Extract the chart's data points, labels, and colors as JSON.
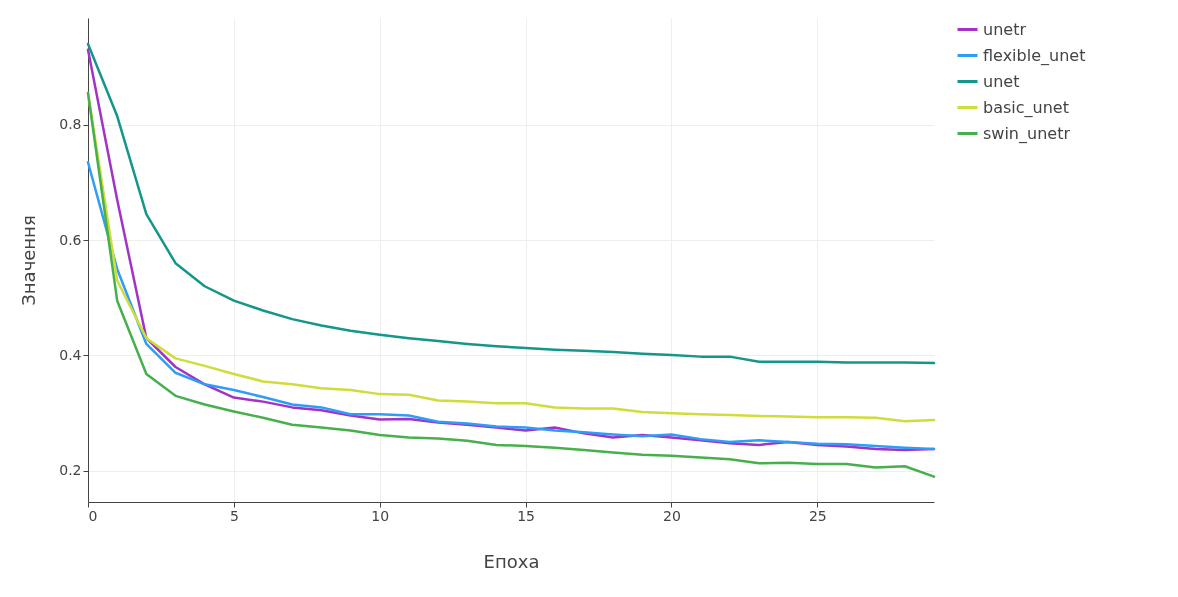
{
  "chart_data": {
    "type": "line",
    "xlabel": "Епоха",
    "ylabel": "Значення",
    "x": [
      0,
      1,
      2,
      3,
      4,
      5,
      6,
      7,
      8,
      9,
      10,
      11,
      12,
      13,
      14,
      15,
      16,
      17,
      18,
      19,
      20,
      21,
      22,
      23,
      24,
      25,
      26,
      27,
      28,
      29
    ],
    "series": [
      {
        "name": "unetr",
        "color": "#a233c6",
        "values": [
          0.93,
          0.67,
          0.43,
          0.38,
          0.35,
          0.327,
          0.32,
          0.31,
          0.305,
          0.296,
          0.289,
          0.29,
          0.284,
          0.28,
          0.275,
          0.27,
          0.275,
          0.265,
          0.258,
          0.262,
          0.258,
          0.253,
          0.248,
          0.245,
          0.25,
          0.245,
          0.242,
          0.238,
          0.236,
          0.238
        ]
      },
      {
        "name": "flexible_unet",
        "color": "#2e9df7",
        "values": [
          0.735,
          0.55,
          0.42,
          0.37,
          0.35,
          0.34,
          0.328,
          0.315,
          0.31,
          0.298,
          0.298,
          0.296,
          0.285,
          0.282,
          0.277,
          0.275,
          0.27,
          0.267,
          0.263,
          0.26,
          0.263,
          0.255,
          0.25,
          0.253,
          0.25,
          0.247,
          0.246,
          0.243,
          0.24,
          0.238
        ]
      },
      {
        "name": "unet",
        "color": "#14968a",
        "values": [
          0.94,
          0.815,
          0.645,
          0.56,
          0.52,
          0.495,
          0.478,
          0.463,
          0.452,
          0.443,
          0.436,
          0.43,
          0.425,
          0.42,
          0.416,
          0.413,
          0.41,
          0.408,
          0.406,
          0.403,
          0.401,
          0.398,
          0.398,
          0.389,
          0.389,
          0.389,
          0.388,
          0.388,
          0.388,
          0.387
        ]
      },
      {
        "name": "basic_unet",
        "color": "#cfdd3a",
        "values": [
          0.855,
          0.53,
          0.43,
          0.395,
          0.382,
          0.368,
          0.355,
          0.35,
          0.343,
          0.34,
          0.333,
          0.332,
          0.322,
          0.32,
          0.317,
          0.317,
          0.31,
          0.308,
          0.308,
          0.302,
          0.3,
          0.298,
          0.297,
          0.295,
          0.294,
          0.293,
          0.293,
          0.292,
          0.286,
          0.288
        ]
      },
      {
        "name": "swin_unetr",
        "color": "#47b04d",
        "values": [
          0.855,
          0.495,
          0.368,
          0.33,
          0.315,
          0.303,
          0.292,
          0.28,
          0.275,
          0.27,
          0.262,
          0.258,
          0.256,
          0.252,
          0.245,
          0.243,
          0.24,
          0.236,
          0.232,
          0.228,
          0.226,
          0.223,
          0.22,
          0.213,
          0.214,
          0.212,
          0.212,
          0.206,
          0.208,
          0.19
        ]
      }
    ],
    "xlim": [
      0,
      29
    ],
    "xticks": [
      0,
      5,
      10,
      15,
      20,
      25
    ],
    "ylim": [
      0.146,
      0.985
    ],
    "yticks": [
      0.2,
      0.4,
      0.6,
      0.8
    ],
    "grid": true,
    "legend": "top right",
    "marker": "none",
    "line_style": "solid"
  }
}
